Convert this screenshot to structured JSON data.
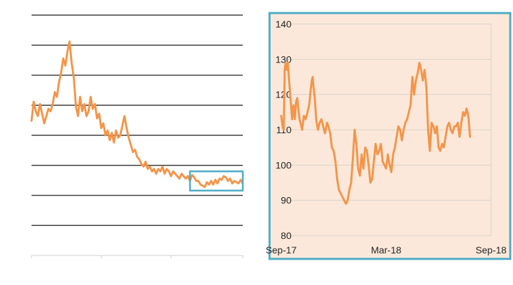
{
  "colors": {
    "line": "#f3954a",
    "grid": "#3d3d3d",
    "zoom_panel_bg": "#fbe8da",
    "zoom_frame": "#4bacc6",
    "zoom_grid": "#d9d2cb",
    "axis_text": "#262626"
  },
  "chart_data": [
    {
      "type": "line",
      "title": "",
      "xlabel": "",
      "ylabel": "",
      "grid": "horizontal",
      "axis_labels_visible": false,
      "y_gridline_count": 8,
      "series": [
        {
          "name": "",
          "color": "#f3954a",
          "points": [
            [
              0,
              0.56
            ],
            [
              0.6,
              0.64
            ],
            [
              1.2,
              0.6
            ],
            [
              1.8,
              0.58
            ],
            [
              2.4,
              0.63
            ],
            [
              3.0,
              0.59
            ],
            [
              3.6,
              0.55
            ],
            [
              4.2,
              0.58
            ],
            [
              4.8,
              0.61
            ],
            [
              5.4,
              0.6
            ],
            [
              6.0,
              0.63
            ],
            [
              6.6,
              0.68
            ],
            [
              7.2,
              0.66
            ],
            [
              7.8,
              0.72
            ],
            [
              8.4,
              0.76
            ],
            [
              9.0,
              0.82
            ],
            [
              9.6,
              0.79
            ],
            [
              10.2,
              0.85
            ],
            [
              10.8,
              0.89
            ],
            [
              11.4,
              0.8
            ],
            [
              12.0,
              0.74
            ],
            [
              12.6,
              0.62
            ],
            [
              13.2,
              0.58
            ],
            [
              13.8,
              0.66
            ],
            [
              14.4,
              0.6
            ],
            [
              15.0,
              0.63
            ],
            [
              15.6,
              0.58
            ],
            [
              16.2,
              0.6
            ],
            [
              16.8,
              0.66
            ],
            [
              17.4,
              0.61
            ],
            [
              18.0,
              0.63
            ],
            [
              18.6,
              0.57
            ],
            [
              19.2,
              0.59
            ],
            [
              19.8,
              0.53
            ],
            [
              20.4,
              0.55
            ],
            [
              21.0,
              0.5
            ],
            [
              21.6,
              0.52
            ],
            [
              22.2,
              0.48
            ],
            [
              22.8,
              0.51
            ],
            [
              23.4,
              0.47
            ],
            [
              24.0,
              0.52
            ],
            [
              24.6,
              0.49
            ],
            [
              25.2,
              0.5
            ],
            [
              25.8,
              0.54
            ],
            [
              26.4,
              0.58
            ],
            [
              27.0,
              0.53
            ],
            [
              27.6,
              0.49
            ],
            [
              28.2,
              0.46
            ],
            [
              28.8,
              0.43
            ],
            [
              29.4,
              0.44
            ],
            [
              30.0,
              0.41
            ],
            [
              30.6,
              0.4
            ],
            [
              31.2,
              0.38
            ],
            [
              31.8,
              0.37
            ],
            [
              32.4,
              0.39
            ],
            [
              33.0,
              0.36
            ],
            [
              33.6,
              0.37
            ],
            [
              34.2,
              0.35
            ],
            [
              34.8,
              0.36
            ],
            [
              35.4,
              0.34
            ],
            [
              36.0,
              0.36
            ],
            [
              36.6,
              0.35
            ],
            [
              37.2,
              0.37
            ],
            [
              37.8,
              0.34
            ],
            [
              38.4,
              0.36
            ],
            [
              39.0,
              0.35
            ],
            [
              39.6,
              0.33
            ],
            [
              40.2,
              0.35
            ],
            [
              40.8,
              0.34
            ],
            [
              41.4,
              0.33
            ],
            [
              42.0,
              0.32
            ],
            [
              42.6,
              0.34
            ],
            [
              43.2,
              0.33
            ],
            [
              43.8,
              0.32
            ],
            [
              44.4,
              0.33
            ],
            [
              45.0,
              0.31
            ],
            [
              45.6,
              0.335
            ],
            [
              46.2,
              0.325
            ],
            [
              46.8,
              0.31
            ],
            [
              47.4,
              0.31
            ],
            [
              48.0,
              0.295
            ],
            [
              48.6,
              0.29
            ],
            [
              49.2,
              0.285
            ],
            [
              49.8,
              0.305
            ],
            [
              50.4,
              0.295
            ],
            [
              51.0,
              0.31
            ],
            [
              51.6,
              0.295
            ],
            [
              52.2,
              0.315
            ],
            [
              52.8,
              0.3
            ],
            [
              53.4,
              0.32
            ],
            [
              54.0,
              0.315
            ],
            [
              54.6,
              0.33
            ],
            [
              55.2,
              0.325
            ],
            [
              55.8,
              0.31
            ],
            [
              56.4,
              0.32
            ],
            [
              57.0,
              0.3
            ],
            [
              57.6,
              0.31
            ],
            [
              58.2,
              0.305
            ],
            [
              58.8,
              0.3
            ],
            [
              59.4,
              0.315
            ],
            [
              60.0,
              0.3
            ]
          ]
        }
      ],
      "zoom_region": {
        "x_start": 45,
        "x_end": 60,
        "y_low": 0.27,
        "y_high": 0.35
      }
    },
    {
      "type": "line",
      "title": "",
      "xlabel": "",
      "ylabel": "",
      "grid": "horizontal",
      "legend": "none",
      "ylim": [
        80,
        140
      ],
      "yticks": [
        80,
        90,
        100,
        110,
        120,
        130,
        140
      ],
      "x_tick_labels": [
        "Sep-17",
        "Mar-18",
        "Sep-18"
      ],
      "x_tick_positions": [
        0,
        6,
        12
      ],
      "series": [
        {
          "name": "",
          "color": "#f3954a",
          "points": [
            [
              0.0,
              114
            ],
            [
              0.08,
              111
            ],
            [
              0.15,
              110
            ],
            [
              0.2,
              127
            ],
            [
              0.25,
              129
            ],
            [
              0.3,
              127
            ],
            [
              0.38,
              129
            ],
            [
              0.45,
              124
            ],
            [
              0.55,
              118
            ],
            [
              0.62,
              113
            ],
            [
              0.7,
              117
            ],
            [
              0.78,
              113
            ],
            [
              0.85,
              118
            ],
            [
              0.92,
              119
            ],
            [
              1.0,
              115
            ],
            [
              1.05,
              113
            ],
            [
              1.1,
              112
            ],
            [
              1.2,
              110
            ],
            [
              1.3,
              114
            ],
            [
              1.4,
              113
            ],
            [
              1.5,
              115
            ],
            [
              1.6,
              117
            ],
            [
              1.7,
              122
            ],
            [
              1.75,
              124
            ],
            [
              1.8,
              125
            ],
            [
              1.85,
              122
            ],
            [
              1.92,
              119
            ],
            [
              2.0,
              113
            ],
            [
              2.1,
              110
            ],
            [
              2.2,
              112
            ],
            [
              2.3,
              113
            ],
            [
              2.4,
              111
            ],
            [
              2.5,
              109
            ],
            [
              2.55,
              110
            ],
            [
              2.62,
              112
            ],
            [
              2.7,
              111
            ],
            [
              2.8,
              109
            ],
            [
              2.9,
              105
            ],
            [
              3.0,
              104
            ],
            [
              3.1,
              101
            ],
            [
              3.2,
              96
            ],
            [
              3.3,
              93
            ],
            [
              3.4,
              92
            ],
            [
              3.5,
              91
            ],
            [
              3.6,
              90
            ],
            [
              3.7,
              89
            ],
            [
              3.8,
              90
            ],
            [
              3.9,
              93
            ],
            [
              4.0,
              95
            ],
            [
              4.1,
              102
            ],
            [
              4.2,
              110
            ],
            [
              4.3,
              106
            ],
            [
              4.4,
              99
            ],
            [
              4.5,
              97
            ],
            [
              4.6,
              103
            ],
            [
              4.7,
              99
            ],
            [
              4.8,
              105
            ],
            [
              4.9,
              104
            ],
            [
              5.0,
              100
            ],
            [
              5.1,
              95
            ],
            [
              5.2,
              96
            ],
            [
              5.3,
              101
            ],
            [
              5.4,
              106
            ],
            [
              5.5,
              103
            ],
            [
              5.6,
              104
            ],
            [
              5.7,
              106
            ],
            [
              5.8,
              101
            ],
            [
              5.9,
              100
            ],
            [
              6.0,
              99
            ],
            [
              6.1,
              103
            ],
            [
              6.2,
              100
            ],
            [
              6.3,
              98
            ],
            [
              6.4,
              103
            ],
            [
              6.5,
              105
            ],
            [
              6.6,
              108
            ],
            [
              6.7,
              111
            ],
            [
              6.8,
              110
            ],
            [
              6.9,
              107
            ],
            [
              7.0,
              110
            ],
            [
              7.1,
              112
            ],
            [
              7.2,
              113
            ],
            [
              7.3,
              115
            ],
            [
              7.4,
              117
            ],
            [
              7.5,
              125
            ],
            [
              7.6,
              120
            ],
            [
              7.7,
              124
            ],
            [
              7.8,
              126
            ],
            [
              7.9,
              129
            ],
            [
              8.0,
              127
            ],
            [
              8.1,
              124
            ],
            [
              8.2,
              127
            ],
            [
              8.3,
              122
            ],
            [
              8.4,
              110
            ],
            [
              8.5,
              104
            ],
            [
              8.6,
              112
            ],
            [
              8.7,
              111
            ],
            [
              8.8,
              109
            ],
            [
              8.9,
              111
            ],
            [
              9.0,
              105
            ],
            [
              9.1,
              104
            ],
            [
              9.2,
              106
            ],
            [
              9.3,
              105
            ],
            [
              9.4,
              108
            ],
            [
              9.5,
              111
            ],
            [
              9.6,
              112
            ],
            [
              9.7,
              110
            ],
            [
              9.8,
              109
            ],
            [
              9.9,
              111
            ],
            [
              10.0,
              111
            ],
            [
              10.1,
              112
            ],
            [
              10.2,
              108
            ],
            [
              10.3,
              112
            ],
            [
              10.4,
              115
            ],
            [
              10.5,
              114
            ],
            [
              10.6,
              116
            ],
            [
              10.7,
              114
            ],
            [
              10.8,
              108
            ]
          ]
        }
      ]
    }
  ]
}
